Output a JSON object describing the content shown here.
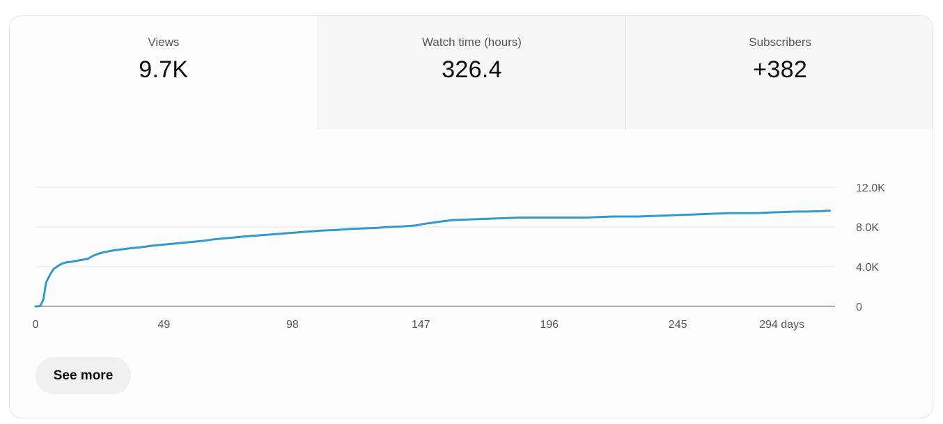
{
  "tabs": [
    {
      "label": "Views",
      "value": "9.7K"
    },
    {
      "label": "Watch time (hours)",
      "value": "326.4"
    },
    {
      "label": "Subscribers",
      "value": "+382"
    }
  ],
  "see_more_label": "See more",
  "colors": {
    "line": "#3399cc",
    "grid": "#e3e3e3",
    "axis": "#909090"
  },
  "chart_data": {
    "type": "line",
    "title": "",
    "xlabel": "",
    "ylabel": "",
    "xlim": [
      0,
      305
    ],
    "ylim": [
      0,
      12000
    ],
    "grid": true,
    "y_ticks": [
      {
        "value": 0,
        "label": "0"
      },
      {
        "value": 4000,
        "label": "4.0K"
      },
      {
        "value": 8000,
        "label": "8.0K"
      },
      {
        "value": 12000,
        "label": "12.0K"
      }
    ],
    "x_ticks": [
      {
        "value": 0,
        "label": "0"
      },
      {
        "value": 49,
        "label": "49"
      },
      {
        "value": 98,
        "label": "98"
      },
      {
        "value": 147,
        "label": "147"
      },
      {
        "value": 196,
        "label": "196"
      },
      {
        "value": 245,
        "label": "245"
      },
      {
        "value": 294,
        "label": "294 days"
      }
    ],
    "series": [
      {
        "x": [
          0,
          1,
          2,
          3,
          4,
          5,
          6,
          7,
          8,
          9,
          10,
          12,
          14,
          16,
          18,
          20,
          22,
          24,
          26,
          28,
          30,
          33,
          36,
          40,
          44,
          48,
          52,
          56,
          60,
          64,
          68,
          72,
          76,
          80,
          85,
          90,
          95,
          100,
          105,
          110,
          115,
          120,
          125,
          130,
          135,
          140,
          145,
          148,
          152,
          156,
          160,
          165,
          170,
          175,
          180,
          185,
          190,
          195,
          200,
          205,
          210,
          215,
          220,
          225,
          230,
          235,
          240,
          245,
          250,
          255,
          260,
          265,
          270,
          275,
          280,
          285,
          290,
          294,
          300,
          303
        ],
        "y": [
          0,
          0,
          100,
          700,
          2400,
          2900,
          3400,
          3800,
          3950,
          4150,
          4300,
          4450,
          4500,
          4600,
          4700,
          4800,
          5100,
          5300,
          5450,
          5550,
          5650,
          5750,
          5850,
          5950,
          6100,
          6200,
          6300,
          6400,
          6500,
          6600,
          6750,
          6850,
          6950,
          7050,
          7150,
          7250,
          7350,
          7450,
          7550,
          7650,
          7700,
          7800,
          7850,
          7900,
          8000,
          8050,
          8150,
          8300,
          8450,
          8600,
          8700,
          8750,
          8800,
          8850,
          8900,
          8950,
          8950,
          8950,
          8950,
          8950,
          8950,
          9000,
          9050,
          9050,
          9050,
          9100,
          9150,
          9200,
          9250,
          9300,
          9350,
          9400,
          9400,
          9400,
          9450,
          9500,
          9550,
          9550,
          9600,
          9650
        ]
      }
    ]
  }
}
